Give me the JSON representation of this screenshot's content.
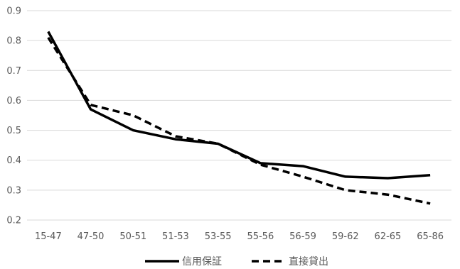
{
  "chart_data": {
    "type": "line",
    "title": "",
    "xlabel": "",
    "ylabel": "",
    "categories": [
      "15-47",
      "47-50",
      "50-51",
      "51-53",
      "53-55",
      "55-56",
      "56-59",
      "59-62",
      "62-65",
      "65-86"
    ],
    "ylim": [
      0.2,
      0.9
    ],
    "yticks": [
      "0.2",
      "0.3",
      "0.4",
      "0.5",
      "0.6",
      "0.7",
      "0.8",
      "0.9"
    ],
    "grid": true,
    "legend": "bottom",
    "series": [
      {
        "name": "信用保証",
        "style": "solid",
        "color": "#000000",
        "values": [
          0.83,
          0.57,
          0.5,
          0.47,
          0.455,
          0.39,
          0.38,
          0.345,
          0.34,
          0.35
        ]
      },
      {
        "name": "直接貸出",
        "style": "dashed",
        "color": "#000000",
        "values": [
          0.81,
          0.585,
          0.55,
          0.48,
          0.455,
          0.385,
          0.345,
          0.3,
          0.285,
          0.255
        ]
      }
    ]
  }
}
